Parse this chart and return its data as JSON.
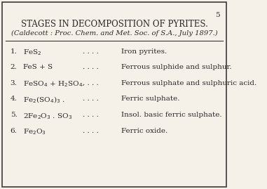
{
  "title": "STAGES IN DECOMPOSITION OF PYRITES.",
  "subtitle": "(Caldecott : Proc. Chem. and Met. Soc. of S.A., July 1897.)",
  "page_number": "5",
  "background_color": "#f5f0e8",
  "border_color": "#3a3a3a",
  "rows": [
    {
      "number": "1.",
      "formula": "FeS$_2$",
      "description": "Iron pyrites."
    },
    {
      "number": "2.",
      "formula": "FeS + S",
      "description": "Ferrous sulphide and sulphur."
    },
    {
      "number": "3.",
      "formula": "FeSO$_4$ + H$_2$SO$_4$.",
      "description": "Ferrous sulphate and sulphuric acid."
    },
    {
      "number": "4.",
      "formula": "Fe$_2$(SO$_4$)$_3$ .",
      "description": "Ferric sulphate."
    },
    {
      "number": "5.",
      "formula": "2Fe$_2$O$_3$ . SO$_3$",
      "description": "Insol. basic ferric sulphate."
    },
    {
      "number": "6.",
      "formula": "Fe$_2$O$_3$",
      "description": "Ferric oxide."
    }
  ],
  "dots": ". . . .",
  "title_fontsize": 8.5,
  "subtitle_fontsize": 7.2,
  "row_fontsize": 7.5,
  "text_color": "#2a2a2a",
  "row_tops": [
    0.745,
    0.66,
    0.578,
    0.495,
    0.41,
    0.325
  ]
}
